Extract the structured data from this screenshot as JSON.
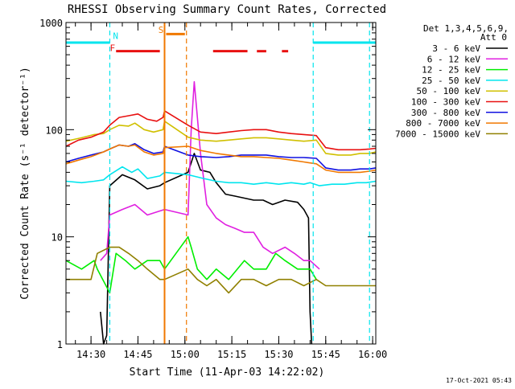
{
  "chart_data": {
    "type": "line",
    "title": "RHESSI Observing Summary Count Rates, Corrected",
    "xlabel": "Start Time (11-Apr-03 14:22:02)",
    "ylabel": "Corrected Count Rate (s⁻¹ detector⁻¹)",
    "x_unit": "minutes since 14:22:02",
    "xlim": [
      0,
      99
    ],
    "ylim": [
      1,
      1000
    ],
    "yscale": "log",
    "x_ticks": [
      {
        "x": 8,
        "label": "14:30"
      },
      {
        "x": 23,
        "label": "14:45"
      },
      {
        "x": 38,
        "label": "15:00"
      },
      {
        "x": 53,
        "label": "15:15"
      },
      {
        "x": 68,
        "label": "15:30"
      },
      {
        "x": 83,
        "label": "15:45"
      },
      {
        "x": 98,
        "label": "16:00"
      }
    ],
    "y_ticks": [
      {
        "y": 1,
        "label": "1"
      },
      {
        "y": 10,
        "label": "10"
      },
      {
        "y": 100,
        "label": "100"
      },
      {
        "y": 1000,
        "label": "1000"
      }
    ],
    "legend": {
      "header_line1": "Det 1,3,4,5,6,9,",
      "header_line2": "Att 0",
      "placement": "right"
    },
    "series": [
      {
        "name": "3 - 6 keV",
        "color": "#000000",
        "points": [
          [
            11,
            2
          ],
          [
            12,
            1
          ],
          [
            13,
            1.2
          ],
          [
            14,
            30
          ],
          [
            18,
            38
          ],
          [
            22,
            34
          ],
          [
            26,
            28
          ],
          [
            30,
            30
          ],
          [
            31.5,
            32
          ],
          [
            39,
            40
          ],
          [
            41,
            60
          ],
          [
            43,
            42
          ],
          [
            46,
            40
          ],
          [
            48,
            32
          ],
          [
            51,
            25
          ],
          [
            54,
            24
          ],
          [
            60,
            22
          ],
          [
            63,
            22
          ],
          [
            66,
            20
          ],
          [
            70,
            22
          ],
          [
            74,
            21
          ],
          [
            76,
            18
          ],
          [
            77.5,
            15
          ],
          [
            78,
            2
          ],
          [
            78.5,
            1
          ]
        ]
      },
      {
        "name": "6 - 12 keV",
        "color": "#e020e0",
        "points": [
          [
            11,
            6
          ],
          [
            13,
            7
          ],
          [
            14,
            16
          ],
          [
            18,
            18
          ],
          [
            22,
            20
          ],
          [
            26,
            16
          ],
          [
            31.5,
            18
          ],
          [
            39,
            16
          ],
          [
            40,
            100
          ],
          [
            41,
            280
          ],
          [
            43,
            60
          ],
          [
            45,
            20
          ],
          [
            48,
            15
          ],
          [
            51,
            13
          ],
          [
            54,
            12
          ],
          [
            57,
            11
          ],
          [
            60,
            11
          ],
          [
            63,
            8
          ],
          [
            66,
            7
          ],
          [
            70,
            8
          ],
          [
            73,
            7
          ],
          [
            76,
            6
          ],
          [
            78,
            6
          ],
          [
            81,
            5
          ]
        ]
      },
      {
        "name": "12 - 25 keV",
        "color": "#00ee00",
        "points": [
          [
            0,
            6
          ],
          [
            5,
            5
          ],
          [
            9,
            6
          ],
          [
            10,
            5
          ],
          [
            14,
            3
          ],
          [
            16,
            7
          ],
          [
            19,
            6
          ],
          [
            22,
            5
          ],
          [
            26,
            6
          ],
          [
            30,
            6
          ],
          [
            31.5,
            5
          ],
          [
            39,
            10
          ],
          [
            40,
            8
          ],
          [
            42,
            5
          ],
          [
            45,
            4
          ],
          [
            48,
            5
          ],
          [
            52,
            4
          ],
          [
            57,
            6
          ],
          [
            60,
            5
          ],
          [
            64,
            5
          ],
          [
            67,
            7
          ],
          [
            70,
            6
          ],
          [
            74,
            5
          ],
          [
            78,
            5
          ],
          [
            80,
            4
          ]
        ]
      },
      {
        "name": "25 - 50 keV",
        "color": "#00e5ee",
        "points": [
          [
            0,
            33
          ],
          [
            5,
            32
          ],
          [
            9,
            33
          ],
          [
            12,
            34
          ],
          [
            14,
            38
          ],
          [
            18,
            45
          ],
          [
            21,
            40
          ],
          [
            23,
            43
          ],
          [
            26,
            35
          ],
          [
            30,
            37
          ],
          [
            31.5,
            40
          ],
          [
            39,
            38
          ],
          [
            44,
            35
          ],
          [
            48,
            33
          ],
          [
            52,
            32
          ],
          [
            56,
            32
          ],
          [
            60,
            31
          ],
          [
            64,
            32
          ],
          [
            68,
            31
          ],
          [
            72,
            32
          ],
          [
            76,
            31
          ],
          [
            78,
            32
          ],
          [
            81,
            30
          ],
          [
            85,
            31
          ],
          [
            89,
            31
          ],
          [
            93,
            32
          ],
          [
            96,
            32
          ],
          [
            99,
            33
          ]
        ]
      },
      {
        "name": "50 - 100 keV",
        "color": "#d0c000",
        "points": [
          [
            0,
            78
          ],
          [
            5,
            84
          ],
          [
            9,
            90
          ],
          [
            12,
            92
          ],
          [
            14,
            100
          ],
          [
            17,
            110
          ],
          [
            20,
            108
          ],
          [
            22,
            115
          ],
          [
            25,
            100
          ],
          [
            28,
            95
          ],
          [
            31,
            100
          ],
          [
            31.5,
            120
          ],
          [
            39,
            85
          ],
          [
            43,
            80
          ],
          [
            48,
            78
          ],
          [
            52,
            80
          ],
          [
            56,
            82
          ],
          [
            60,
            84
          ],
          [
            64,
            84
          ],
          [
            68,
            82
          ],
          [
            72,
            80
          ],
          [
            76,
            78
          ],
          [
            80,
            80
          ],
          [
            83,
            60
          ],
          [
            87,
            58
          ],
          [
            91,
            58
          ],
          [
            94,
            60
          ],
          [
            97,
            60
          ],
          [
            99,
            62
          ]
        ]
      },
      {
        "name": "100 - 300 keV",
        "color": "#e81010",
        "points": [
          [
            0,
            70
          ],
          [
            4,
            80
          ],
          [
            8,
            85
          ],
          [
            12,
            95
          ],
          [
            14,
            110
          ],
          [
            17,
            130
          ],
          [
            20,
            135
          ],
          [
            23,
            140
          ],
          [
            26,
            125
          ],
          [
            29,
            120
          ],
          [
            31,
            130
          ],
          [
            31.5,
            150
          ],
          [
            39,
            110
          ],
          [
            43,
            95
          ],
          [
            48,
            92
          ],
          [
            52,
            95
          ],
          [
            56,
            98
          ],
          [
            60,
            100
          ],
          [
            64,
            100
          ],
          [
            68,
            95
          ],
          [
            72,
            92
          ],
          [
            76,
            90
          ],
          [
            80,
            88
          ],
          [
            83,
            68
          ],
          [
            87,
            65
          ],
          [
            91,
            65
          ],
          [
            94,
            65
          ],
          [
            97,
            66
          ],
          [
            99,
            67
          ]
        ]
      },
      {
        "name": "300 - 800 keV",
        "color": "#1010e0",
        "points": [
          [
            0,
            50
          ],
          [
            4,
            54
          ],
          [
            8,
            58
          ],
          [
            12,
            62
          ],
          [
            14,
            66
          ],
          [
            17,
            72
          ],
          [
            20,
            70
          ],
          [
            22,
            74
          ],
          [
            25,
            65
          ],
          [
            28,
            60
          ],
          [
            31,
            62
          ],
          [
            31.5,
            70
          ],
          [
            39,
            58
          ],
          [
            43,
            56
          ],
          [
            48,
            55
          ],
          [
            52,
            56
          ],
          [
            56,
            58
          ],
          [
            60,
            58
          ],
          [
            64,
            58
          ],
          [
            68,
            56
          ],
          [
            72,
            55
          ],
          [
            76,
            55
          ],
          [
            80,
            54
          ],
          [
            83,
            44
          ],
          [
            87,
            42
          ],
          [
            91,
            42
          ],
          [
            94,
            43
          ],
          [
            97,
            43
          ],
          [
            99,
            44
          ]
        ]
      },
      {
        "name": "800 - 7000 keV",
        "color": "#f07800",
        "points": [
          [
            0,
            48
          ],
          [
            4,
            52
          ],
          [
            8,
            56
          ],
          [
            12,
            62
          ],
          [
            14,
            66
          ],
          [
            17,
            72
          ],
          [
            20,
            70
          ],
          [
            22,
            72
          ],
          [
            25,
            62
          ],
          [
            28,
            58
          ],
          [
            31,
            60
          ],
          [
            31.5,
            68
          ],
          [
            39,
            70
          ],
          [
            43,
            64
          ],
          [
            48,
            60
          ],
          [
            52,
            58
          ],
          [
            56,
            56
          ],
          [
            60,
            56
          ],
          [
            64,
            55
          ],
          [
            68,
            54
          ],
          [
            72,
            52
          ],
          [
            76,
            50
          ],
          [
            80,
            48
          ],
          [
            83,
            42
          ],
          [
            87,
            40
          ],
          [
            91,
            40
          ],
          [
            94,
            40
          ],
          [
            97,
            41
          ],
          [
            99,
            42
          ]
        ]
      },
      {
        "name": "7000 - 15000 keV",
        "color": "#908000",
        "points": [
          [
            0,
            4
          ],
          [
            4,
            4
          ],
          [
            8,
            4
          ],
          [
            10,
            7
          ],
          [
            14,
            8
          ],
          [
            17,
            8
          ],
          [
            20,
            7
          ],
          [
            23,
            6
          ],
          [
            26,
            5
          ],
          [
            30,
            4
          ],
          [
            31.5,
            4
          ],
          [
            39,
            5
          ],
          [
            42,
            4
          ],
          [
            45,
            3.5
          ],
          [
            48,
            4
          ],
          [
            52,
            3
          ],
          [
            56,
            4
          ],
          [
            60,
            4
          ],
          [
            64,
            3.5
          ],
          [
            68,
            4
          ],
          [
            72,
            4
          ],
          [
            76,
            3.5
          ],
          [
            80,
            4
          ],
          [
            83,
            3.5
          ],
          [
            87,
            3.5
          ],
          [
            91,
            3.5
          ],
          [
            94,
            3.5
          ],
          [
            97,
            3.5
          ],
          [
            99,
            3.5
          ]
        ]
      }
    ],
    "flags": [
      {
        "type": "dashed-vline",
        "x": 14,
        "color": "#00e5ee"
      },
      {
        "type": "dashed-vline",
        "x": 79,
        "color": "#00e5ee"
      },
      {
        "type": "dashed-vline",
        "x": 97,
        "color": "#00e5ee"
      },
      {
        "type": "dashed-vline",
        "x": 38.5,
        "color": "#f07800"
      },
      {
        "type": "solid-vline",
        "x": 31.5,
        "color": "#f07800"
      },
      {
        "type": "segment",
        "x0": 0,
        "x1": 14,
        "y": 650,
        "color": "#00e5ee"
      },
      {
        "type": "segment",
        "x0": 79,
        "x1": 99,
        "y": 650,
        "color": "#00e5ee"
      },
      {
        "type": "segment",
        "x0": 16,
        "x1": 30,
        "y": 540,
        "color": "#e81010"
      },
      {
        "type": "segment",
        "x0": 47,
        "x1": 58,
        "y": 540,
        "color": "#e81010"
      },
      {
        "type": "segment",
        "x0": 61,
        "x1": 64,
        "y": 540,
        "color": "#e81010"
      },
      {
        "type": "segment",
        "x0": 69,
        "x1": 71,
        "y": 540,
        "color": "#e81010"
      },
      {
        "type": "segment",
        "x0": 32,
        "x1": 38,
        "y": 780,
        "color": "#f07800"
      }
    ],
    "flag_labels": [
      {
        "text": "N",
        "x": 15,
        "y": 700,
        "color": "#00e5ee"
      },
      {
        "text": "F",
        "x": 14,
        "y": 540,
        "color": "#e81010"
      },
      {
        "text": "S",
        "x": 29.5,
        "y": 800,
        "color": "#f07800"
      }
    ],
    "footer_timestamp": "17-Oct-2021 05:43"
  }
}
